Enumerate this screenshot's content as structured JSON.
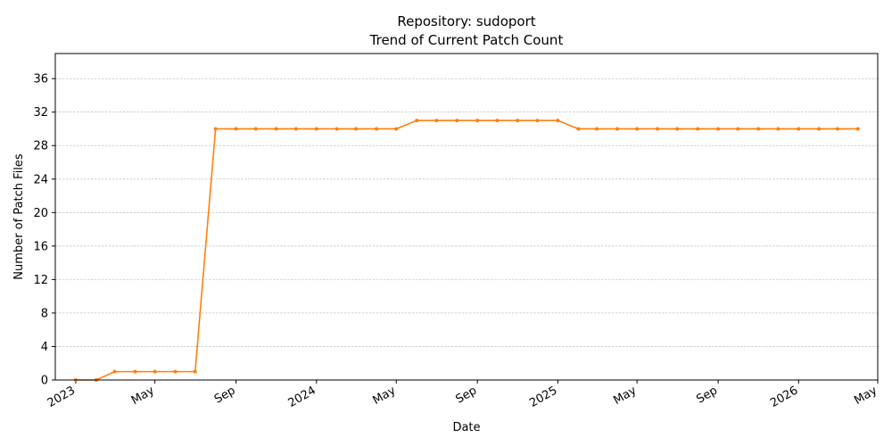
{
  "chart_data": {
    "type": "line",
    "title": "Repository: sudoport",
    "subtitle": "Trend of Current Patch Count",
    "xlabel": "Date",
    "ylabel": "Number of Patch Files",
    "ylim": [
      0,
      39
    ],
    "xlim": [
      "2022-12-01",
      "2026-05-01"
    ],
    "yticks": [
      0,
      4,
      8,
      12,
      16,
      20,
      24,
      28,
      32,
      36
    ],
    "xticks": [
      {
        "date": "2023-01-01",
        "label": "2023"
      },
      {
        "date": "2023-05-01",
        "label": "May"
      },
      {
        "date": "2023-09-01",
        "label": "Sep"
      },
      {
        "date": "2024-01-01",
        "label": "2024"
      },
      {
        "date": "2024-05-01",
        "label": "May"
      },
      {
        "date": "2024-09-01",
        "label": "Sep"
      },
      {
        "date": "2025-01-01",
        "label": "2025"
      },
      {
        "date": "2025-05-01",
        "label": "May"
      },
      {
        "date": "2025-09-01",
        "label": "Sep"
      },
      {
        "date": "2026-01-01",
        "label": "2026"
      },
      {
        "date": "2026-05-01",
        "label": "May"
      }
    ],
    "grid": "y-dashed",
    "color": "#ff7f0e",
    "x": [
      "2023-01-01",
      "2023-02-01",
      "2023-03-01",
      "2023-04-01",
      "2023-05-01",
      "2023-06-01",
      "2023-07-01",
      "2023-08-01",
      "2023-09-01",
      "2023-10-01",
      "2023-11-01",
      "2023-12-01",
      "2024-01-01",
      "2024-02-01",
      "2024-03-01",
      "2024-04-01",
      "2024-05-01",
      "2024-06-01",
      "2024-07-01",
      "2024-08-01",
      "2024-09-01",
      "2024-10-01",
      "2024-11-01",
      "2024-12-01",
      "2025-01-01",
      "2025-02-01",
      "2025-03-01",
      "2025-04-01",
      "2025-05-01",
      "2025-06-01",
      "2025-07-01",
      "2025-08-01",
      "2025-09-01",
      "2025-10-01",
      "2025-11-01",
      "2025-12-01",
      "2026-01-01",
      "2026-02-01",
      "2026-03-01",
      "2026-04-01"
    ],
    "values": [
      0,
      0,
      1,
      1,
      1,
      1,
      1,
      30,
      30,
      30,
      30,
      30,
      30,
      30,
      30,
      30,
      30,
      31,
      31,
      31,
      31,
      31,
      31,
      31,
      31,
      30,
      30,
      30,
      30,
      30,
      30,
      30,
      30,
      30,
      30,
      30,
      30,
      30,
      30,
      30
    ]
  }
}
